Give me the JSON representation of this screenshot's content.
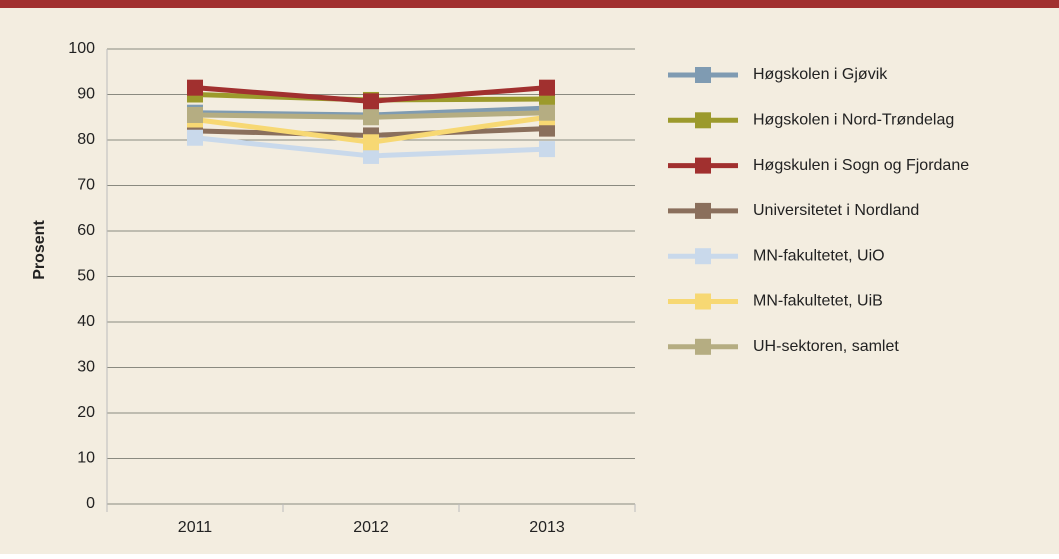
{
  "chart_data": {
    "type": "line",
    "y_label": "Prosent",
    "categories": [
      "2011",
      "2012",
      "2013"
    ],
    "series": [
      {
        "name": "Høgskolen i Gjøvik",
        "color": "#7f9bb2",
        "values": [
          86,
          85.5,
          87
        ]
      },
      {
        "name": "Høgskolen i Nord-Trøndelag",
        "color": "#9c9a2c",
        "values": [
          90,
          88.8,
          89
        ]
      },
      {
        "name": "Høgskulen i Sogn og Fjordane",
        "color": "#a1302f",
        "values": [
          91.5,
          88.5,
          91.5
        ]
      },
      {
        "name": "Universitetet i Nordland",
        "color": "#8a6f5c",
        "values": [
          82,
          81,
          82.5
        ]
      },
      {
        "name": "MN-fakultetet, UiO",
        "color": "#c9d9eb",
        "values": [
          80.5,
          76.5,
          78
        ]
      },
      {
        "name": "MN-fakultetet, UiB",
        "color": "#f7d873",
        "values": [
          84.5,
          79.5,
          85
        ]
      },
      {
        "name": "UH-sektoren, samlet",
        "color": "#b5ad82",
        "values": [
          85.5,
          85,
          86
        ]
      }
    ],
    "ylim": [
      0,
      100
    ],
    "yticks": [
      0,
      10,
      20,
      30,
      40,
      50,
      60,
      70,
      80,
      90,
      100
    ],
    "grid": true,
    "legend": "right"
  }
}
